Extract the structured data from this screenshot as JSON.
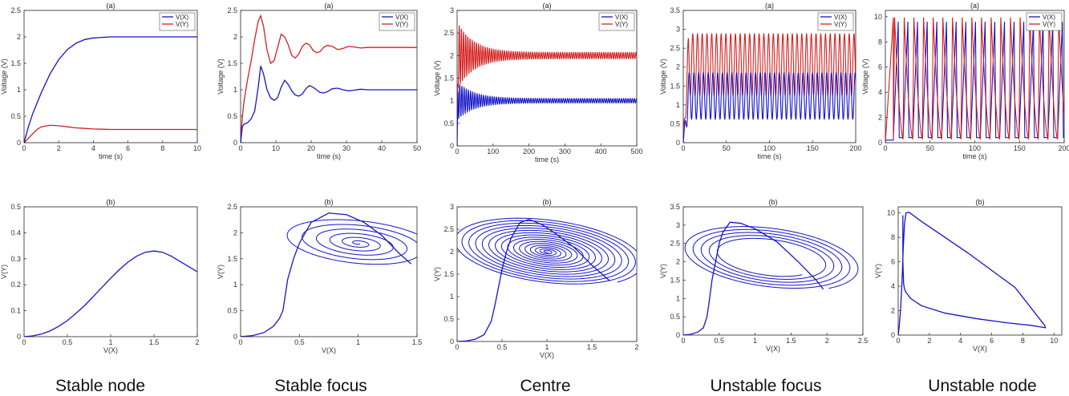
{
  "colors": {
    "vx": "#1515c8",
    "vy": "#d41f1f",
    "axis": "#222222"
  },
  "captions": [
    "Stable node",
    "Stable focus",
    "Centre",
    "Unstable focus",
    "Unstable node"
  ],
  "chart_data": [
    {
      "type": "line",
      "title": "(a)",
      "caption": "Stable node",
      "xlabel": "time (s)",
      "ylabel": "Voltage (V)",
      "xlim": [
        0,
        10
      ],
      "ylim": [
        0,
        2.5
      ],
      "xticks": [
        0,
        2,
        4,
        6,
        8,
        10
      ],
      "yticks": [
        0,
        0.5,
        1,
        1.5,
        2,
        2.5
      ],
      "legend": [
        "V(X)",
        "V(Y)"
      ],
      "legend_position": "top-right",
      "series": [
        {
          "name": "V(X)",
          "x": [
            0,
            0.25,
            0.5,
            1,
            1.5,
            2,
            2.5,
            3,
            3.5,
            4,
            5,
            6,
            8,
            10
          ],
          "y": [
            0,
            0.3,
            0.55,
            0.95,
            1.3,
            1.57,
            1.76,
            1.88,
            1.95,
            1.98,
            2,
            2,
            2,
            2
          ]
        },
        {
          "name": "V(Y)",
          "x": [
            0,
            0.25,
            0.5,
            0.75,
            1,
            1.5,
            2,
            2.5,
            3,
            3.5,
            4,
            5,
            6,
            8,
            10
          ],
          "y": [
            0,
            0.08,
            0.17,
            0.25,
            0.3,
            0.33,
            0.32,
            0.3,
            0.28,
            0.27,
            0.26,
            0.25,
            0.25,
            0.25,
            0.25
          ]
        }
      ]
    },
    {
      "type": "line",
      "title": "(a)",
      "caption": "Stable focus",
      "xlabel": "time (s)",
      "ylabel": "Voltage (V)",
      "xlim": [
        0,
        50
      ],
      "ylim": [
        0,
        2.5
      ],
      "xticks": [
        0,
        10,
        20,
        30,
        40,
        50
      ],
      "yticks": [
        0,
        0.5,
        1,
        1.5,
        2,
        2.5
      ],
      "legend": [
        "V(X)",
        "V(Y)"
      ],
      "legend_position": "top-right",
      "series": [
        {
          "name": "V(X)",
          "x": [
            0,
            0.5,
            1,
            2,
            3,
            4,
            5,
            5.7,
            6.5,
            7.5,
            8.5,
            9.5,
            10.5,
            11.5,
            12.5,
            13.5,
            14.5,
            15.5,
            16.5,
            17.5,
            18.5,
            19.5,
            20.5,
            21.5,
            22.5,
            23.5,
            24.5,
            26,
            27.5,
            29,
            30.5,
            32,
            34,
            36,
            40,
            45,
            50
          ],
          "y": [
            0,
            0.3,
            0.35,
            0.38,
            0.45,
            0.6,
            1.05,
            1.45,
            1.3,
            1.0,
            0.85,
            0.8,
            0.85,
            1.05,
            1.18,
            1.1,
            0.98,
            0.9,
            0.88,
            0.92,
            1.02,
            1.08,
            1.05,
            1.0,
            0.95,
            0.94,
            0.96,
            1.02,
            1.03,
            1.0,
            0.98,
            0.99,
            1.01,
            1.0,
            1,
            1,
            1
          ]
        },
        {
          "name": "V(Y)",
          "x": [
            0,
            0.5,
            1,
            2,
            3,
            4,
            5,
            5.7,
            6.5,
            7.5,
            8.5,
            9.5,
            10.5,
            11.5,
            12.5,
            13.5,
            14.5,
            15.5,
            16.5,
            17.5,
            18.5,
            19.5,
            20.5,
            21.5,
            22.5,
            23.5,
            24.5,
            26,
            27.5,
            29,
            30.5,
            32,
            34,
            36,
            40,
            45,
            50
          ],
          "y": [
            0,
            0.5,
            0.8,
            1.2,
            1.55,
            1.95,
            2.3,
            2.4,
            2.2,
            1.75,
            1.5,
            1.55,
            1.8,
            2.05,
            2.0,
            1.85,
            1.65,
            1.6,
            1.68,
            1.82,
            1.88,
            1.85,
            1.75,
            1.7,
            1.72,
            1.8,
            1.84,
            1.82,
            1.76,
            1.78,
            1.82,
            1.81,
            1.79,
            1.8,
            1.8,
            1.8,
            1.8
          ]
        }
      ]
    },
    {
      "type": "line",
      "title": "(a)",
      "caption": "Centre",
      "xlabel": "time (s)",
      "ylabel": "Voltage (V)",
      "xlim": [
        0,
        500
      ],
      "ylim": [
        0,
        3
      ],
      "xticks": [
        0,
        100,
        200,
        300,
        400,
        500
      ],
      "yticks": [
        0,
        0.5,
        1,
        1.5,
        2,
        2.5,
        3
      ],
      "legend": [
        "V(X)",
        "V(Y)"
      ],
      "legend_position": "top-right",
      "oscillation": {
        "period": 6,
        "center_x": 1.0,
        "center_y": 2.0,
        "initial_amplitude_x": 0.42,
        "initial_amplitude_y": 0.75,
        "final_amplitude_x": 0.05,
        "final_amplitude_y": 0.07
      },
      "series": [
        {
          "name": "V(X)"
        },
        {
          "name": "V(Y)"
        }
      ]
    },
    {
      "type": "line",
      "title": "(a)",
      "caption": "Unstable focus",
      "xlabel": "time (s)",
      "ylabel": "Voltage (V)",
      "xlim": [
        0,
        200
      ],
      "ylim": [
        0,
        3.5
      ],
      "xticks": [
        0,
        50,
        100,
        150,
        200
      ],
      "yticks": [
        0,
        0.5,
        1,
        1.5,
        2,
        2.5,
        3,
        3.5
      ],
      "legend": [
        "V(X)",
        "V(Y)"
      ],
      "legend_position": "top-right",
      "oscillation": {
        "period": 5.5,
        "x_range": [
          0.62,
          1.85
        ],
        "y_range": [
          1.25,
          2.88
        ]
      },
      "series": [
        {
          "name": "V(X)"
        },
        {
          "name": "V(Y)"
        }
      ]
    },
    {
      "type": "line",
      "title": "(a)",
      "caption": "Unstable node",
      "xlabel": "time (s)",
      "ylabel": "Voltage (V)",
      "xlim": [
        0,
        200
      ],
      "ylim": [
        0,
        10.5
      ],
      "xticks": [
        0,
        50,
        100,
        150,
        200
      ],
      "yticks": [
        0,
        2,
        4,
        6,
        8,
        10
      ],
      "legend": [
        "V(X)",
        "V(Y)"
      ],
      "legend_position": "top-right",
      "oscillation": {
        "period": 10.8,
        "first_peak_t": 9,
        "y_peak": 10,
        "y_base": 0.3,
        "x_peak": 9.6,
        "x_base": 0.4
      },
      "series": [
        {
          "name": "V(X)"
        },
        {
          "name": "V(Y)"
        }
      ]
    },
    {
      "type": "line",
      "title": "(b)",
      "caption": "Stable node",
      "xlabel": "V(X)",
      "ylabel": "V(Y)",
      "xlim": [
        0,
        2
      ],
      "ylim": [
        0,
        0.5
      ],
      "xticks": [
        0,
        0.5,
        1,
        1.5,
        2
      ],
      "yticks": [
        0,
        0.1,
        0.2,
        0.3,
        0.4,
        0.5
      ],
      "series": [
        {
          "name": "",
          "x": [
            0,
            0.1,
            0.2,
            0.3,
            0.4,
            0.5,
            0.6,
            0.7,
            0.8,
            0.9,
            1.0,
            1.1,
            1.2,
            1.3,
            1.4,
            1.5,
            1.6,
            1.7,
            1.8,
            1.9,
            2.0
          ],
          "y": [
            0,
            0.003,
            0.01,
            0.022,
            0.04,
            0.062,
            0.09,
            0.12,
            0.155,
            0.19,
            0.225,
            0.258,
            0.287,
            0.31,
            0.325,
            0.33,
            0.325,
            0.31,
            0.29,
            0.27,
            0.25
          ]
        }
      ]
    },
    {
      "type": "line",
      "title": "(b)",
      "caption": "Stable focus",
      "xlabel": "V(X)",
      "ylabel": "V(Y)",
      "xlim": [
        0,
        1.5
      ],
      "ylim": [
        0,
        2.5
      ],
      "xticks": [
        0,
        0.5,
        1,
        1.5
      ],
      "yticks": [
        0,
        0.5,
        1,
        1.5,
        2,
        2.5
      ],
      "spiral": {
        "center": [
          1.0,
          1.8
        ],
        "start": [
          1.45,
          1.4
        ],
        "turns": 6
      },
      "series": [
        {
          "name": "",
          "x": [
            0,
            0.1,
            0.2,
            0.28,
            0.33,
            0.36,
            0.38,
            0.4,
            0.45,
            0.5,
            0.6,
            0.75,
            0.9,
            1.05,
            1.2,
            1.35,
            1.45
          ],
          "y": [
            0,
            0.02,
            0.08,
            0.2,
            0.35,
            0.5,
            0.8,
            1.1,
            1.5,
            1.8,
            2.2,
            2.38,
            2.35,
            2.2,
            1.95,
            1.6,
            1.4
          ]
        }
      ]
    },
    {
      "type": "line",
      "title": "(b)",
      "caption": "Centre",
      "xlabel": "V(X)",
      "ylabel": "V(Y)",
      "xlim": [
        0,
        2
      ],
      "ylim": [
        0,
        3
      ],
      "xticks": [
        0,
        0.5,
        1,
        1.5,
        2
      ],
      "yticks": [
        0,
        0.5,
        1,
        1.5,
        2,
        2.5,
        3
      ],
      "spiral": {
        "center": [
          1.0,
          2.0
        ],
        "start": [
          1.7,
          1.35
        ],
        "turns": 16
      },
      "series": [
        {
          "name": "",
          "x": [
            0,
            0.1,
            0.2,
            0.3,
            0.38,
            0.42,
            0.46,
            0.5,
            0.55,
            0.6,
            0.7,
            0.8,
            0.95,
            1.1,
            1.3,
            1.5,
            1.7
          ],
          "y": [
            0,
            0.01,
            0.05,
            0.15,
            0.45,
            0.8,
            1.2,
            1.6,
            2.0,
            2.3,
            2.65,
            2.72,
            2.6,
            2.4,
            2.1,
            1.7,
            1.35
          ]
        }
      ]
    },
    {
      "type": "line",
      "title": "(b)",
      "caption": "Unstable focus",
      "xlabel": "V(X)",
      "ylabel": "V(Y)",
      "xlim": [
        0,
        2.5
      ],
      "ylim": [
        0,
        3.5
      ],
      "xticks": [
        0,
        0.5,
        1,
        1.5,
        2,
        2.5
      ],
      "yticks": [
        0,
        0.5,
        1,
        1.5,
        2,
        2.5,
        3,
        3.5
      ],
      "spiral": {
        "center": [
          1.2,
          2.1
        ],
        "start": [
          1.95,
          1.25
        ],
        "turns": 5
      },
      "series": [
        {
          "name": "",
          "x": [
            0,
            0.1,
            0.2,
            0.28,
            0.33,
            0.36,
            0.4,
            0.45,
            0.5,
            0.55,
            0.65,
            0.8,
            1.0,
            1.3,
            1.6,
            1.85,
            1.95
          ],
          "y": [
            0,
            0.02,
            0.08,
            0.2,
            0.5,
            0.9,
            1.5,
            2.0,
            2.5,
            2.8,
            3.08,
            3.05,
            2.9,
            2.55,
            2.0,
            1.5,
            1.25
          ]
        }
      ]
    },
    {
      "type": "line",
      "title": "(b)",
      "caption": "Unstable node",
      "xlabel": "V(X)",
      "ylabel": "V(Y)",
      "xlim": [
        0,
        10.5
      ],
      "ylim": [
        0,
        10.5
      ],
      "xticks": [
        0,
        2,
        4,
        6,
        8,
        10
      ],
      "yticks": [
        0,
        2,
        4,
        6,
        8,
        10
      ],
      "series": [
        {
          "name": "",
          "x": [
            0,
            0.05,
            0.15,
            0.25,
            0.32,
            0.4,
            0.5,
            0.7,
            1.5,
            3,
            4.5,
            6,
            7.5,
            9.4,
            9.45,
            8.5,
            7,
            5,
            3,
            1.5,
            0.8,
            0.5,
            0.4,
            0.35,
            0.3,
            0.3
          ],
          "y": [
            0,
            0.5,
            2,
            4.5,
            7,
            9,
            10,
            10.05,
            9.3,
            8.0,
            6.7,
            5.3,
            3.9,
            0.8,
            0.6,
            0.8,
            1.0,
            1.35,
            1.8,
            2.4,
            3.0,
            3.5,
            3.8,
            4.2,
            6,
            9.8
          ]
        }
      ]
    }
  ]
}
